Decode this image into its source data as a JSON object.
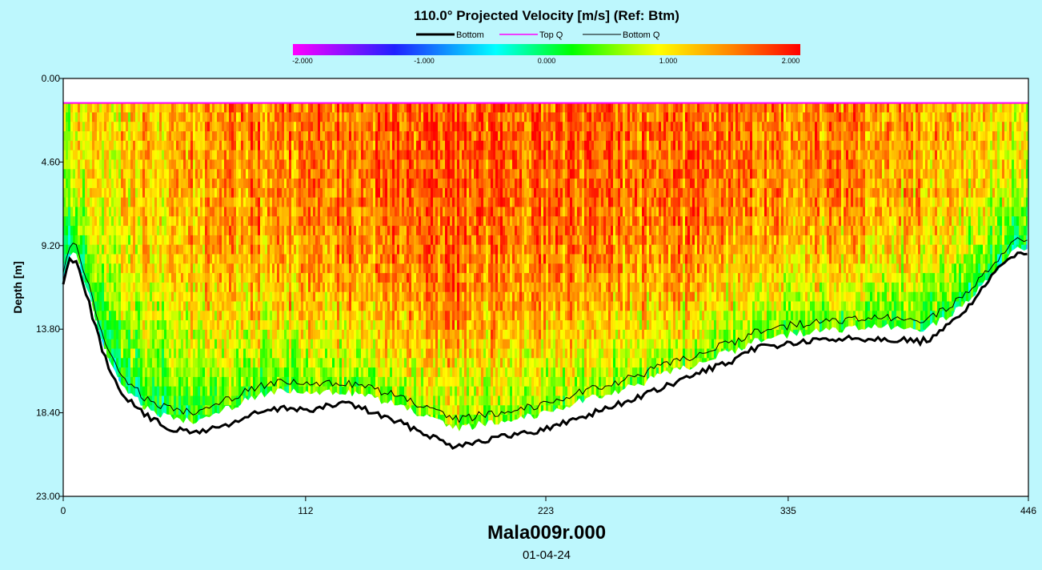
{
  "chart_data": {
    "type": "heatmap",
    "title": "110.0° Projected Velocity [m/s] (Ref: Btm)",
    "legend": {
      "placement": "top",
      "entries": [
        {
          "label": "Bottom",
          "color": "#000000",
          "style": "thick"
        },
        {
          "label": "Top Q",
          "color": "#ff00ff",
          "style": "thin"
        },
        {
          "label": "Bottom Q",
          "color": "#000000",
          "style": "thin"
        }
      ]
    },
    "colorbar": {
      "min": -2.0,
      "max": 2.0,
      "tick_labels": [
        "-2.000",
        "-1.000",
        "0.000",
        "1.000",
        "2.000"
      ],
      "tick_values": [
        -2,
        -1,
        0,
        1,
        2
      ],
      "stops": [
        "#ff00ff",
        "#2020ff",
        "#00ffff",
        "#00ff00",
        "#ffff00",
        "#ff8800",
        "#ff0000"
      ]
    },
    "ylabel": "Depth [m]",
    "ylim": [
      0,
      23
    ],
    "y_ticks": [
      "0.00",
      "4.60",
      "9.20",
      "13.80",
      "18.40",
      "23.00"
    ],
    "y_tick_values": [
      0,
      4.6,
      9.2,
      13.8,
      18.4,
      23
    ],
    "xlim": [
      0,
      446
    ],
    "x_ticks": [
      "0",
      "112",
      "223",
      "335",
      "446"
    ],
    "x_tick_values": [
      0,
      112,
      223,
      335,
      446
    ],
    "top_q_depth": 1.35,
    "bottom_profile": {
      "x": [
        0,
        3,
        6,
        9,
        15,
        22,
        30,
        40,
        50,
        60,
        75,
        90,
        105,
        115,
        130,
        150,
        165,
        180,
        200,
        223,
        240,
        260,
        280,
        300,
        310,
        320,
        335,
        360,
        380,
        395,
        402,
        410,
        420,
        430,
        440,
        446
      ],
      "depth": [
        11.3,
        9.9,
        10.0,
        11.1,
        13.7,
        16.4,
        17.7,
        18.7,
        19.3,
        19.5,
        19.1,
        18.4,
        18.1,
        18.3,
        17.8,
        18.7,
        19.4,
        20.2,
        19.8,
        19.3,
        18.6,
        17.8,
        16.9,
        15.9,
        15.6,
        14.8,
        14.6,
        14.3,
        14.3,
        14.5,
        14.3,
        13.5,
        12.3,
        10.8,
        9.6,
        9.5
      ]
    },
    "bottom_q_profile": {
      "x": [
        0,
        3,
        6,
        9,
        15,
        22,
        30,
        40,
        50,
        60,
        75,
        90,
        105,
        115,
        130,
        150,
        165,
        180,
        200,
        223,
        240,
        260,
        280,
        300,
        310,
        320,
        335,
        360,
        380,
        395,
        402,
        410,
        420,
        430,
        440,
        446
      ],
      "depth": [
        10.5,
        9.2,
        9.3,
        10.3,
        12.8,
        15.4,
        16.8,
        17.8,
        18.2,
        18.3,
        17.7,
        16.9,
        16.7,
        16.9,
        16.7,
        17.3,
        18.0,
        18.8,
        18.4,
        17.9,
        17.2,
        16.6,
        15.7,
        14.9,
        14.5,
        13.9,
        13.6,
        13.3,
        13.2,
        13.4,
        13.0,
        12.6,
        11.5,
        10.1,
        9.0,
        8.8
      ]
    },
    "velocity_field": {
      "x_centers": [
        0,
        25,
        50,
        75,
        100,
        125,
        150,
        175,
        200,
        223,
        250,
        275,
        300,
        325,
        350,
        375,
        400,
        425,
        446
      ],
      "mean_velocity": [
        0.85,
        1.05,
        1.25,
        1.4,
        1.5,
        1.55,
        1.6,
        1.68,
        1.65,
        1.6,
        1.6,
        1.58,
        1.55,
        1.5,
        1.4,
        1.35,
        1.25,
        1.05,
        0.85
      ]
    }
  },
  "footer": {
    "filename": "Mala009r.000",
    "date": "01-04-24"
  }
}
